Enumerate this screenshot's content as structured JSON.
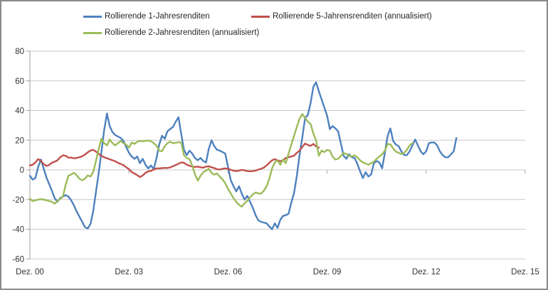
{
  "legend": {
    "items": [
      {
        "label": "Rollierende 1-Jahresrenditen",
        "series_index": 0
      },
      {
        "label": "Rollierende 5-Jahrensrenditen (annualisiert)",
        "series_index": 1
      },
      {
        "label": "Rollierende 2-Jahresrenditen (annualisiert)",
        "series_index": 2
      }
    ]
  },
  "chart_data": {
    "type": "line",
    "title": "",
    "xlabel": "",
    "ylabel": "",
    "grid": true,
    "legend_position": "top",
    "y_axis": {
      "min": -60,
      "max": 80,
      "step": 20,
      "tick_labels": [
        "80",
        "60",
        "40",
        "20",
        "0",
        "-20",
        "-40",
        "-60"
      ]
    },
    "x_axis": {
      "tick_labels": [
        "Dez. 00",
        "Dez. 03",
        "Dez. 06",
        "Dez. 09",
        "Dez. 12",
        "Dez. 15"
      ],
      "months_between_ticks": 36,
      "unit": "months since Dez. 00"
    },
    "series": [
      {
        "name": "Rollierende 1-Jahresrenditen",
        "color": "#4F81BD",
        "start_month": 0,
        "values": [
          -4,
          -6.5,
          -5.5,
          2,
          7,
          1,
          -5,
          -9.5,
          -14,
          -19,
          -21.5,
          -19,
          -18,
          -17,
          -18,
          -20.5,
          -24,
          -28,
          -31.5,
          -35,
          -38.5,
          -39.5,
          -36.5,
          -28,
          -15,
          -2,
          12,
          27,
          38,
          29.5,
          25.5,
          23.5,
          22.5,
          21.5,
          19.5,
          15.5,
          11.5,
          9,
          7.5,
          9,
          4.5,
          7.5,
          3.5,
          1,
          3,
          0.5,
          8,
          17,
          23,
          21,
          26,
          27.5,
          29,
          32.5,
          35.5,
          24,
          13.5,
          10,
          13,
          11,
          8,
          6.5,
          8,
          6,
          5,
          14,
          20,
          16,
          13.5,
          13,
          12,
          11,
          2,
          -7,
          -11,
          -14.5,
          -11,
          -16,
          -20,
          -17.5,
          -21.5,
          -25.5,
          -30.5,
          -34,
          -35,
          -35.5,
          -36,
          -38,
          -40,
          -36,
          -39,
          -33.5,
          -31,
          -30.5,
          -29.5,
          -22,
          -15.5,
          -4,
          10,
          22,
          35,
          37,
          45,
          56,
          59,
          53,
          47.5,
          42,
          36.5,
          27.5,
          29.5,
          28,
          26,
          18,
          9.5,
          7.5,
          10.5,
          8.5,
          8,
          4,
          -1,
          -5.5,
          -1.5,
          -4.5,
          -3,
          4.5,
          6,
          5,
          1,
          11.5,
          23,
          28,
          19.5,
          17,
          16,
          12.5,
          10,
          10,
          12.5,
          16.5,
          20.5,
          16.5,
          12.5,
          10.5,
          12.5,
          18,
          18.5,
          18.5,
          16.5,
          12.5,
          10,
          8.5,
          8.5,
          10.5,
          12.5,
          21.5
        ]
      },
      {
        "name": "Rollierende 5-Jahrensrenditen (annualisiert)",
        "color": "#C0504D",
        "start_month": 0,
        "values": [
          3,
          3.5,
          5,
          7.3,
          6,
          4,
          2.7,
          3.3,
          4.8,
          5.5,
          6.5,
          8.5,
          9.8,
          9.5,
          8.3,
          8.3,
          7.8,
          8,
          8.6,
          9.1,
          10.3,
          11.8,
          13,
          13.5,
          12.3,
          10.8,
          9.5,
          8.5,
          7.8,
          7.2,
          6.5,
          5.8,
          4.8,
          4,
          3.2,
          1.8,
          0.5,
          -1.4,
          -2.5,
          -3.5,
          -4.8,
          -3.8,
          -2,
          -1,
          -0.7,
          0.2,
          1,
          1,
          1.2,
          1.3,
          1.3,
          1.7,
          2.5,
          3.2,
          4.2,
          5,
          4.8,
          3.5,
          2.8,
          2.2,
          2,
          2.2,
          1.8,
          1.5,
          2.2,
          2.4,
          1.8,
          1.2,
          0.5,
          0.2,
          0.8,
          1,
          0.8,
          0,
          -0.5,
          -0.8,
          -0.5,
          0,
          -0.3,
          -0.8,
          -1,
          -0.8,
          -0.5,
          0.2,
          0.8,
          1.5,
          3,
          4.8,
          6.5,
          7.2,
          6.5,
          5.8,
          6.5,
          8,
          8.6,
          9,
          9.6,
          11.5,
          13,
          15.5,
          17.8,
          16.8,
          16.2,
          17.5,
          15.8,
          15
        ]
      },
      {
        "name": "Rollierende 2-Jahresrenditen (annualisiert)",
        "color": "#9BBB59",
        "start_month": 0,
        "values": [
          -19.5,
          -21,
          -20.5,
          -20,
          -19.7,
          -20,
          -20.5,
          -21,
          -21.5,
          -22.8,
          -21,
          -19.5,
          -18,
          -10,
          -4,
          -3,
          -2,
          -3.5,
          -6,
          -7,
          -6,
          -3.7,
          -4.5,
          -1.5,
          6,
          14,
          21,
          18,
          16.5,
          20.5,
          18,
          16.5,
          18,
          19.5,
          18,
          17,
          15,
          18.5,
          17.5,
          19,
          19.5,
          19.3,
          19.5,
          19.8,
          19.3,
          18,
          16.3,
          13,
          12.5,
          16,
          18,
          19,
          18,
          18.2,
          18.7,
          18.3,
          10,
          8,
          7.2,
          3,
          -3,
          -7.2,
          -4,
          -1.6,
          -0.5,
          0.8,
          -2,
          -3.2,
          -2.4,
          -4.5,
          -6.4,
          -9,
          -12.8,
          -16,
          -19,
          -21.6,
          -23.5,
          -24.8,
          -22.5,
          -20.8,
          -18.5,
          -16.5,
          -15.2,
          -15.8,
          -16,
          -14,
          -11.2,
          -6,
          1,
          5,
          6.4,
          3.5,
          7,
          4.5,
          11,
          17,
          23,
          29,
          34.5,
          37.6,
          35,
          32.5,
          31,
          24.5,
          20,
          9.5,
          13,
          12,
          13.5,
          13,
          9,
          7,
          7.5,
          9.5,
          11.3,
          10.8,
          9.5,
          9,
          9.8,
          8.5,
          6.5,
          5,
          4.3,
          3.5,
          4.5,
          5.5,
          7.5,
          9,
          10.5,
          13,
          17.5,
          17.2,
          14.5,
          12.3,
          11.5,
          10.7,
          11.5,
          13.5,
          16.5,
          18
        ]
      }
    ],
    "plot_notes": {
      "gridline_color": "#c9c9c9",
      "axis_color": "#a0a0a0"
    }
  }
}
